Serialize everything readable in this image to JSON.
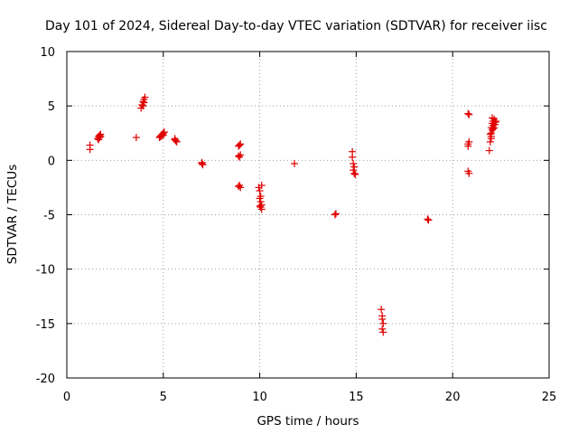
{
  "chart_data": {
    "type": "scatter",
    "title": "Day 101 of 2024, Sidereal Day-to-day VTEC variation (SDTVAR) for receiver iisc",
    "xlabel": "GPS time / hours",
    "ylabel": "SDTVAR / TECUs",
    "xlim": [
      0,
      25
    ],
    "ylim": [
      -20,
      10
    ],
    "xticks": [
      0,
      5,
      10,
      15,
      20,
      25
    ],
    "yticks": [
      -20,
      -15,
      -10,
      -5,
      0,
      5,
      10
    ],
    "grid": true,
    "marker": "plus",
    "color": "#e00000",
    "series": [
      {
        "name": "SDTVAR",
        "points": [
          [
            1.2,
            1.0
          ],
          [
            1.2,
            1.4
          ],
          [
            1.6,
            2.0
          ],
          [
            1.65,
            2.2
          ],
          [
            1.7,
            2.3
          ],
          [
            1.7,
            2.1
          ],
          [
            1.75,
            2.4
          ],
          [
            1.65,
            1.9
          ],
          [
            1.75,
            2.2
          ],
          [
            3.6,
            2.1
          ],
          [
            3.85,
            4.8
          ],
          [
            3.9,
            5.1
          ],
          [
            3.95,
            5.4
          ],
          [
            4.0,
            5.6
          ],
          [
            4.05,
            5.8
          ],
          [
            3.95,
            5.0
          ],
          [
            4.0,
            5.3
          ],
          [
            4.8,
            2.1
          ],
          [
            4.85,
            2.2
          ],
          [
            4.9,
            2.3
          ],
          [
            4.95,
            2.4
          ],
          [
            5.0,
            2.5
          ],
          [
            5.05,
            2.6
          ],
          [
            5.0,
            2.3
          ],
          [
            4.9,
            2.2
          ],
          [
            5.6,
            1.9
          ],
          [
            5.65,
            1.8
          ],
          [
            5.7,
            1.7
          ],
          [
            5.6,
            2.0
          ],
          [
            7.0,
            -0.3
          ],
          [
            7.05,
            -0.4
          ],
          [
            7.0,
            -0.2
          ],
          [
            8.9,
            1.3
          ],
          [
            8.95,
            1.4
          ],
          [
            9.0,
            1.5
          ],
          [
            8.9,
            0.4
          ],
          [
            8.95,
            0.3
          ],
          [
            9.0,
            0.5
          ],
          [
            8.9,
            -2.4
          ],
          [
            8.95,
            -2.3
          ],
          [
            9.0,
            -2.5
          ],
          [
            9.95,
            -2.5
          ],
          [
            10.0,
            -2.8
          ],
          [
            10.05,
            -3.3
          ],
          [
            10.0,
            -3.5
          ],
          [
            10.05,
            -3.8
          ],
          [
            10.1,
            -4.1
          ],
          [
            10.05,
            -4.3
          ],
          [
            10.1,
            -4.5
          ],
          [
            10.0,
            -4.2
          ],
          [
            10.1,
            -2.3
          ],
          [
            11.8,
            -0.3
          ],
          [
            13.9,
            -5.0
          ],
          [
            13.95,
            -4.9
          ],
          [
            14.8,
            0.8
          ],
          [
            14.8,
            0.3
          ],
          [
            14.85,
            -0.3
          ],
          [
            14.9,
            -0.6
          ],
          [
            14.85,
            -0.9
          ],
          [
            14.9,
            -1.2
          ],
          [
            14.95,
            -1.3
          ],
          [
            16.3,
            -13.7
          ],
          [
            16.35,
            -14.3
          ],
          [
            16.35,
            -14.6
          ],
          [
            16.4,
            -15.0
          ],
          [
            16.35,
            -15.5
          ],
          [
            16.4,
            -15.8
          ],
          [
            18.7,
            -5.4
          ],
          [
            18.75,
            -5.5
          ],
          [
            20.8,
            4.3
          ],
          [
            20.85,
            4.2
          ],
          [
            20.8,
            1.5
          ],
          [
            20.85,
            1.7
          ],
          [
            20.8,
            1.3
          ],
          [
            20.8,
            -1.0
          ],
          [
            20.85,
            -1.2
          ],
          [
            21.9,
            0.9
          ],
          [
            21.95,
            1.7
          ],
          [
            22.0,
            2.0
          ],
          [
            22.0,
            2.5
          ],
          [
            22.05,
            2.8
          ],
          [
            22.0,
            3.0
          ],
          [
            22.1,
            3.2
          ],
          [
            22.05,
            3.4
          ],
          [
            22.1,
            3.6
          ],
          [
            22.15,
            3.8
          ],
          [
            22.2,
            3.5
          ],
          [
            22.15,
            3.0
          ],
          [
            22.2,
            3.3
          ],
          [
            22.1,
            2.9
          ],
          [
            22.25,
            3.6
          ],
          [
            21.95,
            2.4
          ],
          [
            22.0,
            2.2
          ],
          [
            22.05,
            3.9
          ]
        ]
      }
    ]
  }
}
